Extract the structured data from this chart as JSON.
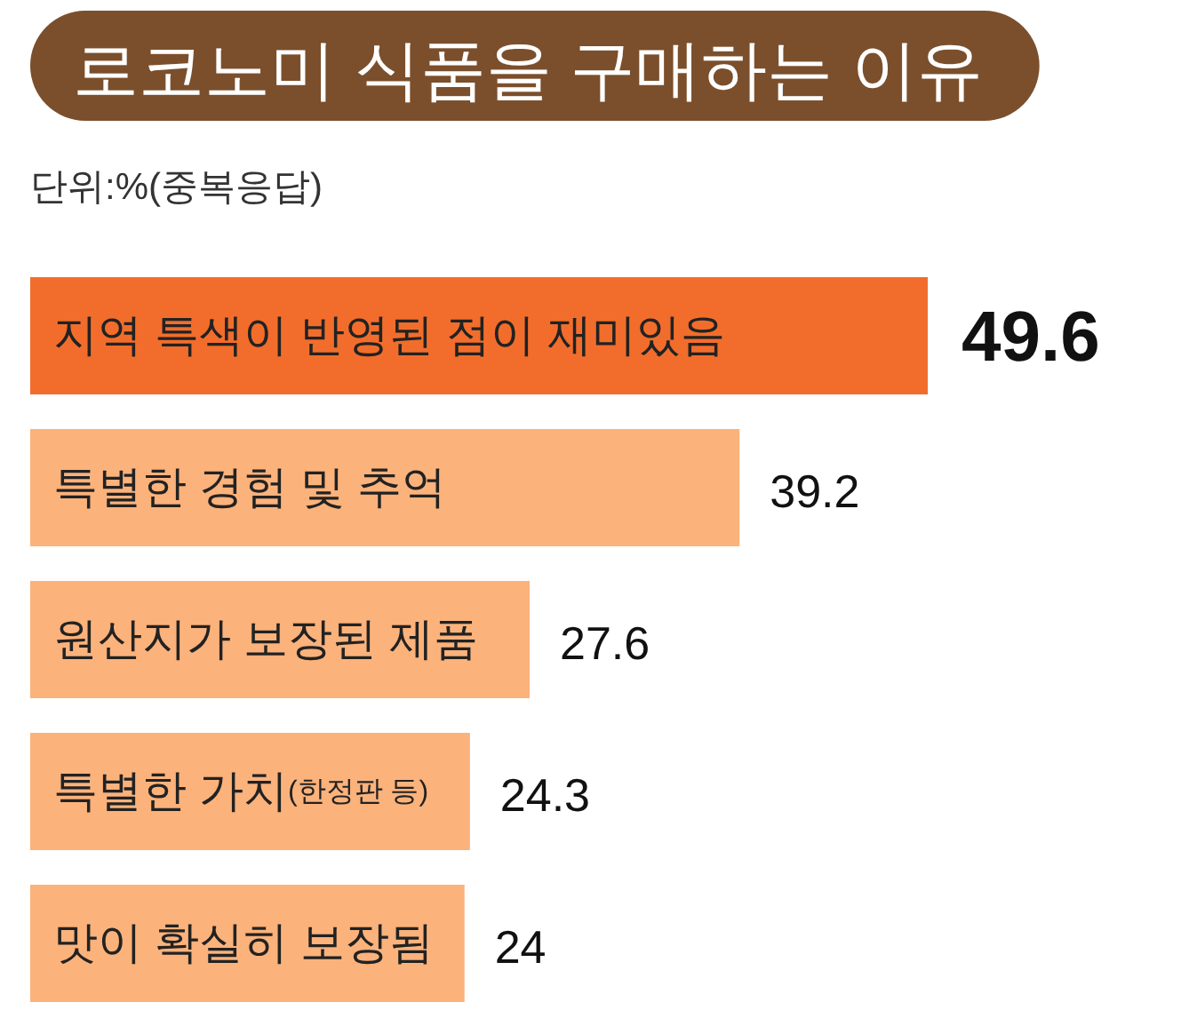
{
  "chart_data": {
    "type": "bar",
    "orientation": "horizontal",
    "title": "로코노미 식품을 구매하는 이유",
    "subtitle": "단위:%(중복응답)",
    "categories": [
      "지역 특색이 반영된 점이 재미있음",
      "특별한 경험 및 추억",
      "원산지가 보장된 제품",
      "특별한 가치(한정판 등)",
      "맛이 확실히 보장됨"
    ],
    "values": [
      49.6,
      39.2,
      27.6,
      24.3,
      24
    ],
    "colors": [
      "#f26d2b",
      "#fbb27b",
      "#fbb27b",
      "#fbb27b",
      "#fbb27b"
    ],
    "data_labels": true
  }
}
